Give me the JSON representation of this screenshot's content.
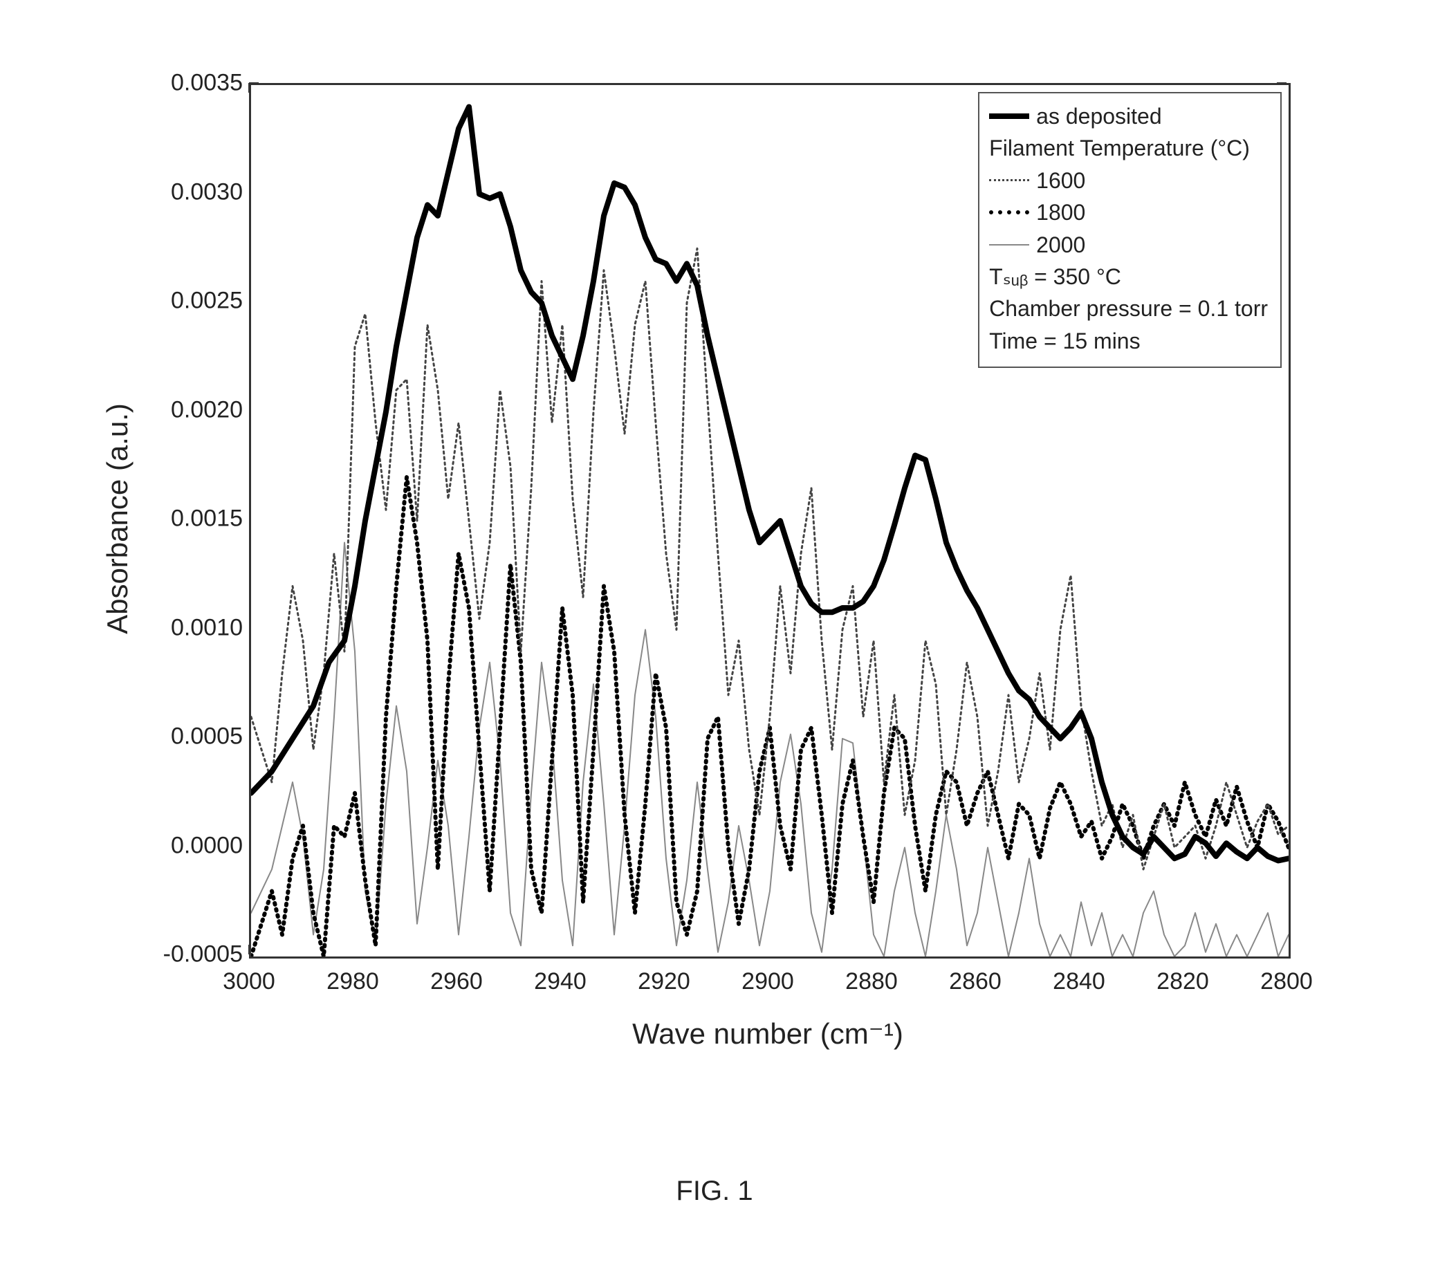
{
  "figure": {
    "caption": "FIG. 1",
    "type": "line",
    "background_color": "#ffffff",
    "frame_color": "#333333",
    "y_axis": {
      "label": "Absorbance (a.u.)",
      "label_fontsize": 42,
      "min": -0.0005,
      "max": 0.0035,
      "ticks": [
        -0.0005,
        0.0,
        0.0005,
        0.001,
        0.0015,
        0.002,
        0.0025,
        0.003,
        0.0035
      ],
      "tick_labels": [
        "-0.0005",
        "0.0000",
        "0.0005",
        "0.0010",
        "0.0015",
        "0.0020",
        "0.0025",
        "0.0030",
        "0.0035"
      ],
      "tick_fontsize": 34
    },
    "x_axis": {
      "label_html": "Wave number (cm⁻¹)",
      "label_fontsize": 42,
      "min": 3000,
      "max": 2800,
      "reversed": true,
      "ticks": [
        3000,
        2980,
        2960,
        2940,
        2920,
        2900,
        2880,
        2860,
        2840,
        2820,
        2800
      ],
      "tick_labels": [
        "3000",
        "2980",
        "2960",
        "2940",
        "2920",
        "2900",
        "2880",
        "2860",
        "2840",
        "2820",
        "2800"
      ],
      "tick_fontsize": 34
    },
    "legend": {
      "title_filament": "Filament Temperature (°C)",
      "extras": [
        "Tₛᵤᵦ = 350 °C",
        "Chamber pressure = 0.1 torr",
        "Time = 15 mins"
      ],
      "position": "top-right",
      "fontsize": 32,
      "items": [
        {
          "name": "as deposited",
          "style": "solid",
          "color": "#000000",
          "width": 8
        },
        {
          "name": "1600",
          "style": "dot1600",
          "color": "#444444",
          "width": 3
        },
        {
          "name": "1800",
          "style": "dot1800",
          "color": "#000000",
          "width": 6
        },
        {
          "name": "2000",
          "style": "dot2000",
          "color": "#888888",
          "width": 2
        }
      ]
    },
    "series": {
      "as_deposited": {
        "color": "#000000",
        "line_width": 8,
        "dash": null,
        "x": [
          3000,
          2996,
          2992,
          2988,
          2985,
          2982,
          2980,
          2978,
          2976,
          2974,
          2972,
          2970,
          2968,
          2966,
          2964,
          2962,
          2960,
          2958,
          2956,
          2954,
          2952,
          2950,
          2948,
          2946,
          2944,
          2942,
          2940,
          2938,
          2936,
          2934,
          2932,
          2930,
          2928,
          2926,
          2924,
          2922,
          2920,
          2918,
          2916,
          2914,
          2912,
          2910,
          2908,
          2906,
          2904,
          2902,
          2900,
          2898,
          2896,
          2894,
          2892,
          2890,
          2888,
          2886,
          2884,
          2882,
          2880,
          2878,
          2876,
          2874,
          2872,
          2870,
          2868,
          2866,
          2864,
          2862,
          2860,
          2858,
          2856,
          2854,
          2852,
          2850,
          2848,
          2846,
          2844,
          2842,
          2840,
          2838,
          2836,
          2834,
          2832,
          2830,
          2828,
          2826,
          2824,
          2822,
          2820,
          2818,
          2816,
          2814,
          2812,
          2810,
          2808,
          2806,
          2804,
          2802,
          2800
        ],
        "y": [
          0.00025,
          0.00035,
          0.0005,
          0.00065,
          0.00085,
          0.00095,
          0.0012,
          0.0015,
          0.00175,
          0.002,
          0.0023,
          0.00255,
          0.0028,
          0.00295,
          0.0029,
          0.0031,
          0.0033,
          0.0034,
          0.003,
          0.00298,
          0.003,
          0.00285,
          0.00265,
          0.00255,
          0.0025,
          0.00235,
          0.00225,
          0.00215,
          0.00235,
          0.0026,
          0.0029,
          0.00305,
          0.00303,
          0.00295,
          0.0028,
          0.0027,
          0.00268,
          0.0026,
          0.00268,
          0.00258,
          0.00235,
          0.00215,
          0.00195,
          0.00175,
          0.00155,
          0.0014,
          0.00145,
          0.0015,
          0.00135,
          0.0012,
          0.00112,
          0.00108,
          0.00108,
          0.0011,
          0.0011,
          0.00113,
          0.0012,
          0.00132,
          0.00148,
          0.00165,
          0.0018,
          0.00178,
          0.0016,
          0.0014,
          0.00128,
          0.00118,
          0.0011,
          0.001,
          0.0009,
          0.0008,
          0.00072,
          0.00068,
          0.0006,
          0.00055,
          0.0005,
          0.00055,
          0.00062,
          0.0005,
          0.0003,
          0.00015,
          5e-05,
          0.0,
          -3e-05,
          5e-05,
          0.0,
          -5e-05,
          -3e-05,
          5e-05,
          2e-05,
          -4e-05,
          2e-05,
          -2e-05,
          -5e-05,
          0.0,
          -4e-05,
          -6e-05,
          -5e-05
        ]
      },
      "t1600": {
        "color": "#444444",
        "line_width": 3,
        "dash": "3,5",
        "x": [
          3000,
          2996,
          2994,
          2992,
          2990,
          2988,
          2986,
          2984,
          2982,
          2980,
          2978,
          2976,
          2974,
          2972,
          2970,
          2968,
          2966,
          2964,
          2962,
          2960,
          2958,
          2956,
          2954,
          2952,
          2950,
          2948,
          2946,
          2944,
          2942,
          2940,
          2938,
          2936,
          2934,
          2932,
          2930,
          2928,
          2926,
          2924,
          2922,
          2920,
          2918,
          2916,
          2914,
          2912,
          2910,
          2908,
          2906,
          2904,
          2902,
          2900,
          2898,
          2896,
          2894,
          2892,
          2890,
          2888,
          2886,
          2884,
          2882,
          2880,
          2878,
          2876,
          2874,
          2872,
          2870,
          2868,
          2866,
          2864,
          2862,
          2860,
          2858,
          2856,
          2854,
          2852,
          2850,
          2848,
          2846,
          2844,
          2842,
          2840,
          2838,
          2836,
          2834,
          2832,
          2830,
          2828,
          2826,
          2824,
          2822,
          2820,
          2818,
          2816,
          2814,
          2812,
          2810,
          2808,
          2806,
          2804,
          2802,
          2800
        ],
        "y": [
          0.0006,
          0.0003,
          0.0008,
          0.0012,
          0.00095,
          0.00045,
          0.0008,
          0.00135,
          0.0009,
          0.0023,
          0.00245,
          0.00195,
          0.00155,
          0.0021,
          0.00215,
          0.0015,
          0.0024,
          0.0021,
          0.0016,
          0.00195,
          0.0015,
          0.00105,
          0.0014,
          0.0021,
          0.00175,
          0.0009,
          0.00165,
          0.0026,
          0.00195,
          0.0024,
          0.0016,
          0.00115,
          0.002,
          0.00265,
          0.0023,
          0.0019,
          0.0024,
          0.0026,
          0.00195,
          0.00135,
          0.001,
          0.0025,
          0.00275,
          0.00205,
          0.00135,
          0.0007,
          0.00095,
          0.00045,
          0.00015,
          0.0006,
          0.0012,
          0.0008,
          0.00135,
          0.00165,
          0.00095,
          0.00045,
          0.001,
          0.0012,
          0.0006,
          0.00095,
          0.0003,
          0.0007,
          0.00015,
          0.0004,
          0.00095,
          0.00075,
          0.00015,
          0.00045,
          0.00085,
          0.0006,
          0.0001,
          0.00035,
          0.0007,
          0.0003,
          0.0005,
          0.0008,
          0.00045,
          0.001,
          0.00125,
          0.00065,
          0.00035,
          0.0001,
          0.0002,
          0.0,
          0.00015,
          -0.0001,
          5e-05,
          0.0002,
          0.0,
          5e-05,
          0.0001,
          -5e-05,
          0.0001,
          0.0003,
          0.00015,
          0.0,
          0.00012,
          0.0002,
          6e-05,
          0.0001
        ]
      },
      "t1800": {
        "color": "#000000",
        "line_width": 6,
        "dash": "2,7",
        "x": [
          3000,
          2996,
          2994,
          2992,
          2990,
          2988,
          2986,
          2984,
          2982,
          2980,
          2978,
          2976,
          2974,
          2972,
          2970,
          2968,
          2966,
          2964,
          2962,
          2960,
          2958,
          2956,
          2954,
          2952,
          2950,
          2948,
          2946,
          2944,
          2942,
          2940,
          2938,
          2936,
          2934,
          2932,
          2930,
          2928,
          2926,
          2924,
          2922,
          2920,
          2918,
          2916,
          2914,
          2912,
          2910,
          2908,
          2906,
          2904,
          2902,
          2900,
          2898,
          2896,
          2894,
          2892,
          2890,
          2888,
          2886,
          2884,
          2882,
          2880,
          2878,
          2876,
          2874,
          2872,
          2870,
          2868,
          2866,
          2864,
          2862,
          2860,
          2858,
          2856,
          2854,
          2852,
          2850,
          2848,
          2846,
          2844,
          2842,
          2840,
          2838,
          2836,
          2834,
          2832,
          2830,
          2828,
          2826,
          2824,
          2822,
          2820,
          2818,
          2816,
          2814,
          2812,
          2810,
          2808,
          2806,
          2804,
          2802,
          2800
        ],
        "y": [
          -0.0005,
          -0.0002,
          -0.0004,
          -5e-05,
          0.0001,
          -0.0003,
          -0.0005,
          0.0001,
          5e-05,
          0.00025,
          -0.00015,
          -0.00045,
          0.0006,
          0.0012,
          0.0017,
          0.0014,
          0.00095,
          -0.0001,
          0.00075,
          0.00135,
          0.0011,
          0.00045,
          -0.0002,
          0.00055,
          0.0013,
          0.00085,
          -0.0001,
          -0.0003,
          0.0004,
          0.0011,
          0.0007,
          -0.00025,
          0.00045,
          0.0012,
          0.0009,
          0.00015,
          -0.0003,
          0.0002,
          0.0008,
          0.00055,
          -0.00025,
          -0.0004,
          -0.0002,
          0.0005,
          0.0006,
          0.0,
          -0.00035,
          -0.0001,
          0.00035,
          0.00055,
          0.0001,
          -0.0001,
          0.00045,
          0.00055,
          0.00015,
          -0.0003,
          0.0002,
          0.0004,
          5e-05,
          -0.00025,
          0.00025,
          0.00055,
          0.0005,
          0.0001,
          -0.0002,
          0.00015,
          0.00035,
          0.0003,
          0.0001,
          0.00025,
          0.00035,
          0.00015,
          -5e-05,
          0.0002,
          0.00015,
          -5e-05,
          0.00018,
          0.0003,
          0.0002,
          5e-05,
          0.00012,
          -5e-05,
          5e-05,
          0.0002,
          0.0001,
          -5e-05,
          0.0001,
          0.0002,
          0.0001,
          0.0003,
          0.00015,
          5e-05,
          0.00022,
          0.0001,
          0.00028,
          0.00012,
          0.0,
          0.0002,
          0.00012,
          0.0
        ]
      },
      "t2000": {
        "color": "#888888",
        "line_width": 2,
        "dash": null,
        "x": [
          3000,
          2996,
          2994,
          2992,
          2990,
          2988,
          2986,
          2984,
          2982,
          2980,
          2978,
          2976,
          2974,
          2972,
          2970,
          2968,
          2966,
          2964,
          2962,
          2960,
          2958,
          2956,
          2954,
          2952,
          2950,
          2948,
          2946,
          2944,
          2942,
          2940,
          2938,
          2936,
          2934,
          2932,
          2930,
          2928,
          2926,
          2924,
          2922,
          2920,
          2918,
          2916,
          2914,
          2912,
          2910,
          2908,
          2906,
          2904,
          2902,
          2900,
          2898,
          2896,
          2894,
          2892,
          2890,
          2888,
          2886,
          2884,
          2882,
          2880,
          2878,
          2876,
          2874,
          2872,
          2870,
          2868,
          2866,
          2864,
          2862,
          2860,
          2858,
          2856,
          2854,
          2852,
          2850,
          2848,
          2846,
          2844,
          2842,
          2840,
          2838,
          2836,
          2834,
          2832,
          2830,
          2828,
          2826,
          2824,
          2822,
          2820,
          2818,
          2816,
          2814,
          2812,
          2810,
          2808,
          2806,
          2804,
          2802,
          2800
        ],
        "y": [
          -0.0003,
          -0.0001,
          0.0001,
          0.0003,
          5e-05,
          -0.0004,
          -0.0001,
          0.0006,
          0.0014,
          0.0009,
          -0.0002,
          -0.00045,
          0.0002,
          0.00065,
          0.00035,
          -0.00035,
          0.0,
          0.0004,
          0.0001,
          -0.0004,
          5e-05,
          0.00055,
          0.00085,
          0.0004,
          -0.0003,
          -0.00045,
          0.00025,
          0.00085,
          0.0005,
          -0.00015,
          -0.00045,
          0.0003,
          0.00075,
          0.0002,
          -0.0004,
          0.0001,
          0.0007,
          0.001,
          0.0006,
          -5e-05,
          -0.00045,
          -0.00015,
          0.0003,
          -0.0001,
          -0.00048,
          -0.00025,
          0.0001,
          -0.00015,
          -0.00045,
          -0.0002,
          0.0003,
          0.00052,
          0.0002,
          -0.0003,
          -0.00048,
          -0.0001,
          0.0005,
          0.00048,
          5e-05,
          -0.0004,
          -0.0005,
          -0.0002,
          0.0,
          -0.0003,
          -0.0005,
          -0.0002,
          0.00015,
          -0.0001,
          -0.00045,
          -0.0003,
          0.0,
          -0.00025,
          -0.0005,
          -0.0003,
          -5e-05,
          -0.00035,
          -0.0005,
          -0.0004,
          -0.0005,
          -0.00025,
          -0.00045,
          -0.0003,
          -0.0005,
          -0.0004,
          -0.0005,
          -0.0003,
          -0.0002,
          -0.0004,
          -0.0005,
          -0.00045,
          -0.0003,
          -0.00048,
          -0.00035,
          -0.0005,
          -0.0004,
          -0.0005,
          -0.0004,
          -0.0003,
          -0.0005,
          -0.0004
        ]
      }
    }
  }
}
